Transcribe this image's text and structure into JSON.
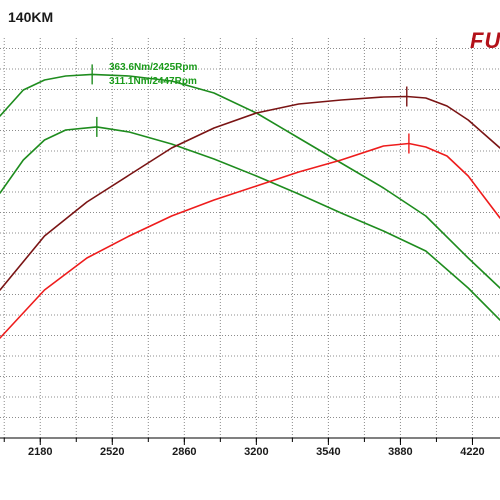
{
  "page": {
    "title": "140KM",
    "logo_text": "FU"
  },
  "annotations": {
    "peak_torque_tuned": "363.6Nm/2425Rpm",
    "peak_torque_stock": "311.1Nm/2447Rpm"
  },
  "colors": {
    "torque": "#1e8c1e",
    "power_tuned": "#7a1414",
    "power_stock": "#ee1c1c",
    "grid": "#8c8c8c",
    "axis": "#000000",
    "logo": "#b3121a"
  },
  "chart_data": {
    "type": "line",
    "title": "140KM",
    "xlabel": "",
    "ylabel": "",
    "x_ticks": [
      2180,
      2520,
      2860,
      3200,
      3540,
      3880,
      4220
    ],
    "xlim": [
      1990,
      4350
    ],
    "ylim": [
      0,
      400
    ],
    "grid": true,
    "legend": "none",
    "series": [
      {
        "key": "torque_tuned",
        "color": "#1e8c1e",
        "x": [
          1990,
          2100,
          2200,
          2300,
          2425,
          2600,
          2800,
          3000,
          3200,
          3400,
          3600,
          3800,
          4000,
          4200,
          4350
        ],
        "y": [
          322,
          348,
          358,
          362,
          363.6,
          362,
          357,
          345,
          325,
          300,
          275,
          250,
          222,
          180,
          150
        ],
        "markers": [
          2425
        ]
      },
      {
        "key": "torque_stock",
        "color": "#1e8c1e",
        "x": [
          1990,
          2100,
          2200,
          2300,
          2447,
          2600,
          2800,
          3000,
          3200,
          3400,
          3600,
          3800,
          4000,
          4200,
          4350
        ],
        "y": [
          245,
          278,
          298,
          308,
          311.1,
          306,
          294,
          279,
          262,
          244,
          225,
          207,
          187,
          150,
          118
        ],
        "markers": [
          2447
        ]
      },
      {
        "key": "power_tuned",
        "color": "#7a1414",
        "x": [
          1990,
          2200,
          2400,
          2600,
          2800,
          3000,
          3200,
          3400,
          3600,
          3800,
          3910,
          4000,
          4100,
          4200,
          4350
        ],
        "y": [
          148,
          202,
          236,
          263,
          290,
          310,
          325,
          334,
          338,
          341,
          341.5,
          340,
          332,
          318,
          290
        ],
        "markers": [
          3910
        ]
      },
      {
        "key": "power_stock",
        "color": "#ee1c1c",
        "x": [
          1990,
          2200,
          2400,
          2600,
          2800,
          3000,
          3200,
          3400,
          3600,
          3800,
          3920,
          4000,
          4100,
          4200,
          4350
        ],
        "y": [
          100,
          148,
          180,
          202,
          222,
          238,
          252,
          266,
          278,
          292,
          294.5,
          291,
          282,
          262,
          220
        ],
        "markers": [
          3920
        ]
      }
    ]
  }
}
